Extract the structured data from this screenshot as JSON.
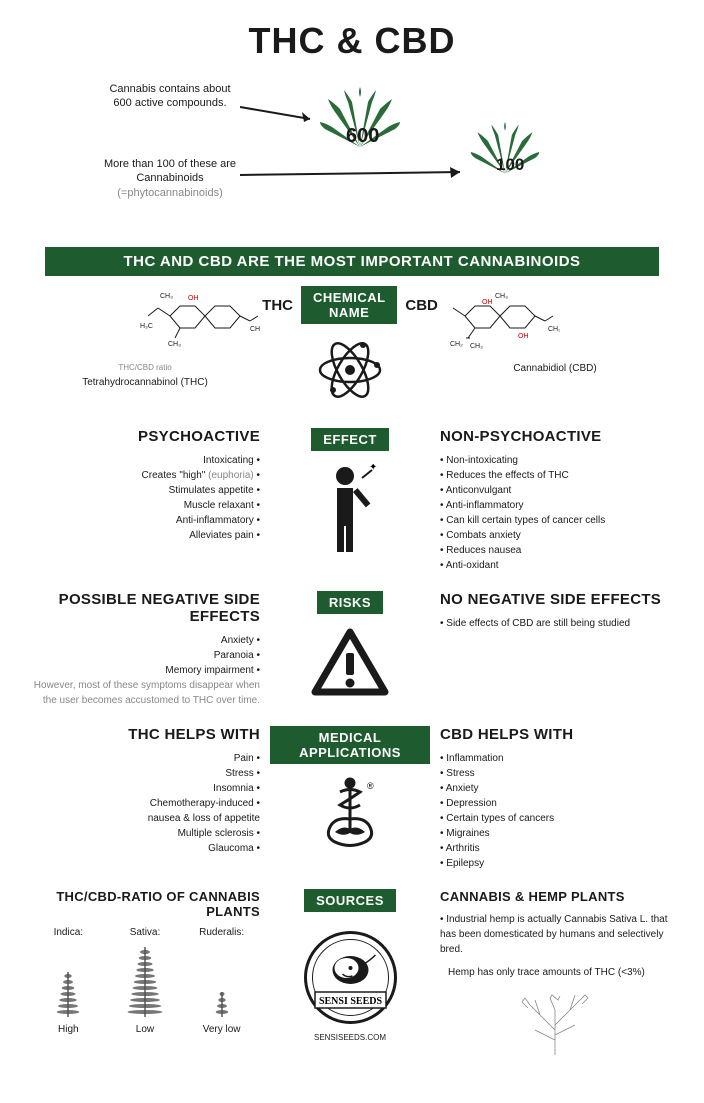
{
  "title": "THC & CBD",
  "intro": {
    "text1": "Cannabis contains about 600 active compounds.",
    "text2_line1": "More than 100 of these are Cannabinoids",
    "text2_line2": "(=phytocannabinoids)",
    "leaf1_num": "600",
    "leaf2_num": "100"
  },
  "banner": "THC AND CBD ARE THE MOST IMPORTANT CANNABINOIDS",
  "colors": {
    "green": "#1e5c2f",
    "leaf": "#2a6b3a",
    "black": "#1a1a1a",
    "grey": "#888888"
  },
  "chemical": {
    "badge": "CHEMICAL NAME",
    "thc_label": "THC",
    "cbd_label": "CBD",
    "thc_ratio": "THC/CBD ratio",
    "thc_name": "Tetrahydrocannabinol (THC)",
    "cbd_name": "Cannabidiol (CBD)"
  },
  "effect": {
    "badge": "EFFECT",
    "thc_heading": "PSYCHOACTIVE",
    "cbd_heading": "NON-PSYCHOACTIVE",
    "thc_list": [
      "Intoxicating •",
      "Creates \"high\" (euphoria) •",
      "Stimulates appetite •",
      "Muscle relaxant •",
      "Anti-inflammatory •",
      "Alleviates pain •"
    ],
    "cbd_list": [
      "• Non-intoxicating",
      "• Reduces the effects of THC",
      "• Anticonvulgant",
      "• Anti-inflammatory",
      "• Can kill certain types of cancer cells",
      "• Combats anxiety",
      "• Reduces nausea",
      "• Anti-oxidant"
    ]
  },
  "risks": {
    "badge": "RISKS",
    "thc_heading": "POSSIBLE NEGATIVE SIDE EFFECTS",
    "cbd_heading": "NO NEGATIVE SIDE EFFECTS",
    "thc_list": [
      "Anxiety •",
      "Paranoia •",
      "Memory impairment •"
    ],
    "thc_note": "However, most of these symptoms disappear when the user becomes accustomed to THC over time.",
    "cbd_list": [
      "• Side effects of CBD are still being studied"
    ]
  },
  "medical": {
    "badge": "MEDICAL APPLICATIONS",
    "thc_heading": "THC HELPS WITH",
    "cbd_heading": "CBD HELPS WITH",
    "thc_list": [
      "Pain •",
      "Stress •",
      "Insomnia •",
      "Chemotherapy-induced •",
      "nausea & loss of appetite",
      "Multiple sclerosis •",
      "Glaucoma •"
    ],
    "cbd_list": [
      "• Inflammation",
      "• Stress",
      "• Anxiety",
      "• Depression",
      "• Certain types of cancers",
      "• Migraines",
      "• Arthritis",
      "• Epilepsy"
    ]
  },
  "sources": {
    "badge": "SOURCES",
    "thc_heading": "THC/CBD-RATIO OF CANNABIS PLANTS",
    "cbd_heading": "CANNABIS & HEMP PLANTS",
    "plants": [
      {
        "name": "Indica:",
        "ratio": "High"
      },
      {
        "name": "Sativa:",
        "ratio": "Low"
      },
      {
        "name": "Ruderalis:",
        "ratio": "Very low"
      }
    ],
    "cbd_text1": "• Industrial hemp is actually Cannabis Sativa L. that has been domesticated by humans and selectively bred.",
    "cbd_text2": "Hemp has only trace amounts of THC (<3%)",
    "logo_text": "SENSI SEEDS",
    "url": "SENSISEEDS.COM"
  }
}
